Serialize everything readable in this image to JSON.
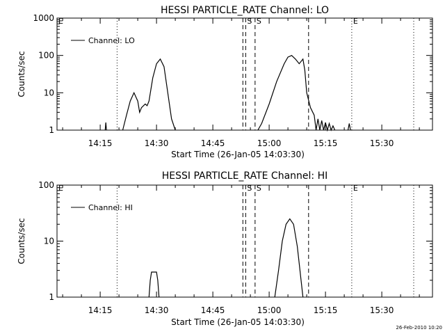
{
  "chart_data": [
    {
      "type": "line",
      "title": "HESSI PARTICLE_RATE Channel: LO",
      "xlabel": "Start Time (26-Jan-05 14:03:30)",
      "ylabel": "Counts/sec",
      "y_scale": "log",
      "ylim": [
        1,
        1000
      ],
      "xlim": [
        "14:03:30",
        "15:43:30"
      ],
      "x_ticks": [
        "14:15",
        "14:30",
        "14:45",
        "15:00",
        "15:15",
        "15:30"
      ],
      "y_ticks": [
        "1",
        "10",
        "100",
        "1000"
      ],
      "legend": {
        "position": "top-left",
        "entries": [
          "Channel: LO"
        ]
      },
      "grid": false,
      "vertical_lines": [
        {
          "time": "14:19:30",
          "style": "dotted",
          "label": ""
        },
        {
          "time": "14:53:00",
          "style": "dashed",
          "label": ""
        },
        {
          "time": "14:53:45",
          "style": "dashed",
          "label": "S"
        },
        {
          "time": "14:56:15",
          "style": "dashed",
          "label": "S"
        },
        {
          "time": "15:10:30",
          "style": "dashed",
          "label": ""
        },
        {
          "time": "15:22:00",
          "style": "dotted",
          "label": "E"
        },
        {
          "time": "15:38:30",
          "style": "dotted",
          "label": ""
        },
        {
          "time": "14:03:30",
          "style": "none",
          "label": "E"
        }
      ],
      "series": [
        {
          "name": "Channel: LO",
          "segments": [
            [
              [
                "14:16:20",
                1
              ],
              [
                "14:16:30",
                1.6
              ],
              [
                "14:16:40",
                1
              ]
            ],
            [
              [
                "14:21:00",
                1
              ],
              [
                "14:22:00",
                2.5
              ],
              [
                "14:23:00",
                6
              ],
              [
                "14:24:00",
                10
              ],
              [
                "14:25:00",
                6
              ],
              [
                "14:25:30",
                3
              ],
              [
                "14:26:00",
                4
              ],
              [
                "14:27:00",
                5
              ],
              [
                "14:27:30",
                4.5
              ],
              [
                "14:28:00",
                6
              ],
              [
                "14:29:00",
                25
              ],
              [
                "14:30:00",
                60
              ],
              [
                "14:31:00",
                80
              ],
              [
                "14:32:00",
                50
              ],
              [
                "14:33:00",
                10
              ],
              [
                "14:34:00",
                2
              ],
              [
                "14:35:00",
                1
              ]
            ],
            [
              [
                "14:57:00",
                1
              ],
              [
                "14:58:00",
                1.5
              ],
              [
                "15:00:00",
                5
              ],
              [
                "15:02:00",
                20
              ],
              [
                "15:04:00",
                60
              ],
              [
                "15:05:00",
                90
              ],
              [
                "15:06:00",
                100
              ],
              [
                "15:07:00",
                80
              ],
              [
                "15:08:00",
                60
              ],
              [
                "15:09:00",
                80
              ],
              [
                "15:09:30",
                40
              ],
              [
                "15:10:00",
                10
              ],
              [
                "15:11:00",
                4
              ],
              [
                "15:12:00",
                2.5
              ],
              [
                "15:12:30",
                1
              ],
              [
                "15:13:00",
                2
              ],
              [
                "15:13:30",
                1
              ],
              [
                "15:14:00",
                1.8
              ],
              [
                "15:14:30",
                1
              ],
              [
                "15:15:00",
                1.6
              ],
              [
                "15:15:30",
                1
              ],
              [
                "15:16:00",
                1.5
              ],
              [
                "15:16:30",
                1
              ],
              [
                "15:17:00",
                1.3
              ],
              [
                "15:17:30",
                1
              ]
            ],
            [
              [
                "15:21:00",
                1
              ],
              [
                "15:21:20",
                1.5
              ],
              [
                "15:21:40",
                1
              ]
            ]
          ]
        }
      ]
    },
    {
      "type": "line",
      "title": "HESSI PARTICLE_RATE Channel: HI",
      "xlabel": "Start Time (26-Jan-05 14:03:30)",
      "ylabel": "Counts/sec",
      "y_scale": "log",
      "ylim": [
        1,
        100
      ],
      "xlim": [
        "14:03:30",
        "15:43:30"
      ],
      "x_ticks": [
        "14:15",
        "14:30",
        "14:45",
        "15:00",
        "15:15",
        "15:30"
      ],
      "y_ticks": [
        "1",
        "10",
        "100"
      ],
      "legend": {
        "position": "top-left",
        "entries": [
          "Channel: HI"
        ]
      },
      "grid": false,
      "vertical_lines": [
        {
          "time": "14:19:30",
          "style": "dotted",
          "label": ""
        },
        {
          "time": "14:53:00",
          "style": "dashed",
          "label": ""
        },
        {
          "time": "14:53:45",
          "style": "dashed",
          "label": "S"
        },
        {
          "time": "14:56:15",
          "style": "dashed",
          "label": "S"
        },
        {
          "time": "15:10:30",
          "style": "dashed",
          "label": ""
        },
        {
          "time": "15:22:00",
          "style": "dotted",
          "label": "E"
        },
        {
          "time": "15:38:30",
          "style": "dotted",
          "label": ""
        },
        {
          "time": "14:03:30",
          "style": "none",
          "label": "E"
        }
      ],
      "series": [
        {
          "name": "Channel: HI",
          "segments": [
            [
              [
                "14:28:00",
                1
              ],
              [
                "14:28:20",
                2
              ],
              [
                "14:28:40",
                2.8
              ],
              [
                "14:30:00",
                2.8
              ],
              [
                "14:30:20",
                2
              ],
              [
                "14:30:40",
                1
              ]
            ],
            [
              [
                "15:01:30",
                1
              ],
              [
                "15:02:30",
                3
              ],
              [
                "15:03:30",
                10
              ],
              [
                "15:04:30",
                20
              ],
              [
                "15:05:30",
                25
              ],
              [
                "15:06:30",
                20
              ],
              [
                "15:07:30",
                8
              ],
              [
                "15:08:30",
                2
              ],
              [
                "15:09:00",
                1
              ]
            ]
          ]
        }
      ]
    }
  ],
  "footer": {
    "timestamp": "26-Feb-2010 10:20"
  }
}
